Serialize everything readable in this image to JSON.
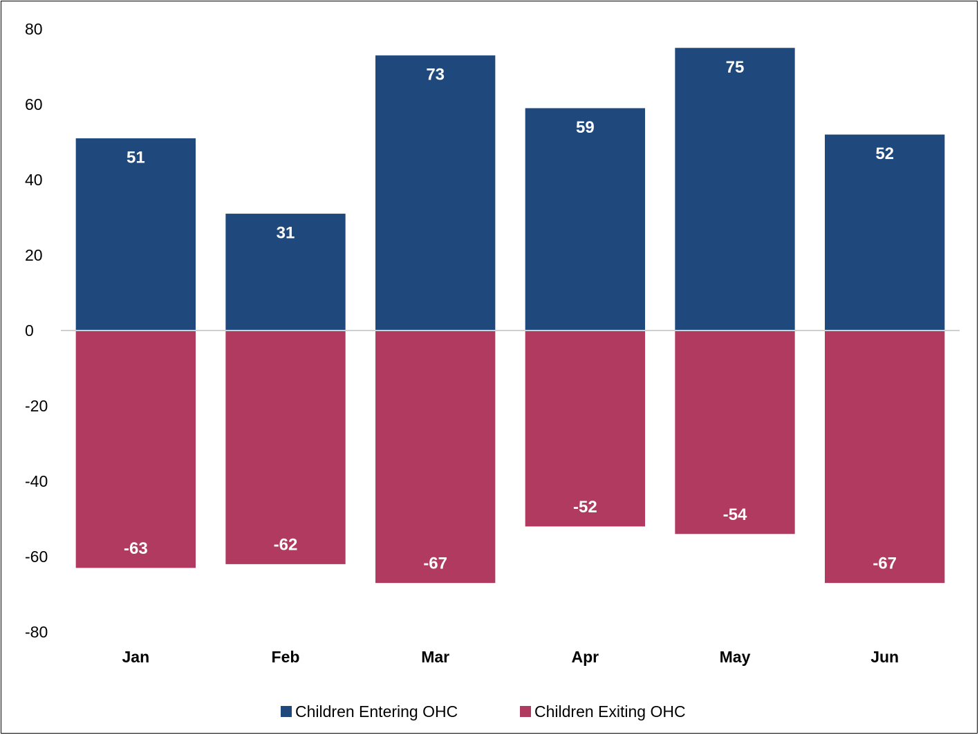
{
  "chart_data": {
    "type": "bar",
    "stacked": true,
    "categories": [
      "Jan",
      "Feb",
      "Mar",
      "Apr",
      "May",
      "Jun"
    ],
    "series": [
      {
        "name": "Children Entering OHC",
        "values": [
          51,
          31,
          73,
          59,
          75,
          52
        ],
        "color": "#1f497d"
      },
      {
        "name": "Children Exiting OHC",
        "values": [
          -63,
          -62,
          -67,
          -52,
          -54,
          -67
        ],
        "color": "#b03a60"
      }
    ],
    "title": "",
    "xlabel": "",
    "ylabel": "",
    "ylim": [
      -80,
      80
    ],
    "yticks": [
      "80",
      "60",
      "40",
      "20",
      "0",
      "-20",
      "-40",
      "-60",
      "-80"
    ],
    "grid": false,
    "legend_position": "bottom",
    "data_labels": true
  }
}
